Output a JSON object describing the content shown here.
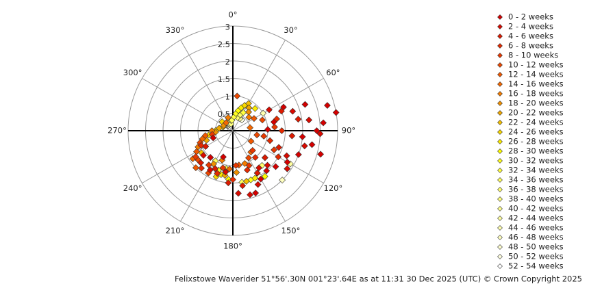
{
  "chart_data": {
    "type": "polar-scatter",
    "footer": "Felixstowe Waverider 51°56'.30N 001°23'.64E as at 11:31 30 Dec 2025 (UTC) © Crown Copyright 2025",
    "rlim": [
      0,
      3
    ],
    "rticks": [
      0.5,
      1,
      1.5,
      2,
      2.5,
      3
    ],
    "thetaticks": [
      {
        "value": 0,
        "label": "0°"
      },
      {
        "value": 30,
        "label": "30°"
      },
      {
        "value": 60,
        "label": "60°"
      },
      {
        "value": 90,
        "label": "90°"
      },
      {
        "value": 120,
        "label": "120°"
      },
      {
        "value": 150,
        "label": "150°"
      },
      {
        "value": 180,
        "label": "180°"
      },
      {
        "value": 210,
        "label": "210°"
      },
      {
        "value": 240,
        "label": "240°"
      },
      {
        "value": 270,
        "label": "270°"
      },
      {
        "value": 300,
        "label": "300°"
      },
      {
        "value": 330,
        "label": "330°"
      }
    ],
    "series": [
      {
        "name": "0 - 2 weeks",
        "color": "#d40000",
        "theta": [
          70,
          75,
          80,
          85,
          90,
          95,
          100,
          105,
          110,
          120,
          130,
          140,
          150,
          160,
          65,
          78,
          88,
          200,
          220,
          250
        ],
        "r": [
          2.2,
          2.8,
          3.0,
          2.6,
          2.4,
          2.0,
          2.3,
          2.6,
          2.0,
          1.8,
          1.6,
          1.5,
          1.6,
          1.9,
          1.6,
          1.2,
          1.0,
          0.8,
          1.0,
          0.6
        ]
      },
      {
        "name": "2 - 4 weeks",
        "color": "#d80a00",
        "theta": [
          72,
          82,
          92,
          102,
          115,
          125,
          135,
          145,
          155,
          165,
          175,
          190,
          210,
          230,
          60
        ],
        "r": [
          1.8,
          2.2,
          2.5,
          2.1,
          1.7,
          1.9,
          1.4,
          1.3,
          1.7,
          1.9,
          1.8,
          1.2,
          1.3,
          1.1,
          1.2
        ]
      },
      {
        "name": "4 - 6 weeks",
        "color": "#dc1a00",
        "theta": [
          68,
          80,
          95,
          110,
          130,
          150,
          170,
          185,
          205,
          225,
          240
        ],
        "r": [
          1.5,
          1.9,
          1.7,
          1.4,
          1.2,
          1.4,
          1.6,
          1.5,
          1.2,
          1.3,
          0.9
        ]
      },
      {
        "name": "6 - 8 weeks",
        "color": "#e42a00",
        "theta": [
          75,
          90,
          105,
          120,
          140,
          160,
          180,
          200,
          220,
          245
        ],
        "r": [
          1.3,
          1.4,
          1.1,
          1.5,
          1.0,
          1.2,
          1.4,
          1.3,
          1.4,
          1.0
        ]
      },
      {
        "name": "8 - 10 weeks",
        "color": "#e83800",
        "theta": [
          85,
          100,
          115,
          135,
          155,
          175,
          195,
          215,
          235,
          260
        ],
        "r": [
          1.2,
          0.9,
          1.3,
          0.8,
          1.1,
          1.0,
          1.1,
          1.2,
          1.3,
          0.6
        ]
      },
      {
        "name": "10 - 12 weeks",
        "color": "#ec4800",
        "theta": [
          7,
          70,
          100,
          150,
          190,
          210,
          230,
          250
        ],
        "r": [
          1.0,
          0.9,
          0.7,
          0.9,
          1.2,
          1.4,
          1.3,
          1.0
        ]
      },
      {
        "name": "12 - 14 weeks",
        "color": "#f05800",
        "theta": [
          60,
          120,
          170,
          200,
          225,
          240,
          260
        ],
        "r": [
          0.7,
          0.6,
          1.0,
          1.3,
          1.5,
          1.2,
          0.8
        ]
      },
      {
        "name": "14 - 16 weeks",
        "color": "#f46800",
        "theta": [
          80,
          140,
          185,
          215,
          235,
          255,
          320
        ],
        "r": [
          0.5,
          0.8,
          1.1,
          1.2,
          1.4,
          0.9,
          0.3
        ]
      },
      {
        "name": "16 - 18 weeks",
        "color": "#f47c00",
        "theta": [
          50,
          160,
          200,
          230,
          245,
          270,
          340
        ],
        "r": [
          0.6,
          1.0,
          0.9,
          1.3,
          1.1,
          0.6,
          0.4
        ]
      },
      {
        "name": "18 - 20 weeks",
        "color": "#f09000",
        "theta": [
          40,
          175,
          210,
          240,
          265,
          300
        ],
        "r": [
          0.7,
          1.2,
          1.1,
          0.9,
          0.5,
          0.3
        ]
      },
      {
        "name": "20 - 22 weeks",
        "color": "#f0a800",
        "theta": [
          35,
          190,
          220,
          250,
          280
        ],
        "r": [
          0.8,
          1.3,
          1.0,
          0.8,
          0.4
        ]
      },
      {
        "name": "22 - 24 weeks",
        "color": "#f4c000",
        "theta": [
          30,
          165,
          205,
          235,
          290
        ],
        "r": [
          0.9,
          1.5,
          1.2,
          1.1,
          0.3
        ]
      },
      {
        "name": "24 - 26 weeks",
        "color": "#f8d800",
        "theta": [
          25,
          150,
          200,
          260,
          310
        ],
        "r": [
          0.8,
          1.4,
          1.4,
          0.7,
          0.4
        ]
      },
      {
        "name": "26 - 28 weeks",
        "color": "#fcec00",
        "theta": [
          20,
          45,
          155,
          195,
          270
        ],
        "r": [
          0.7,
          0.9,
          1.5,
          1.3,
          0.5
        ]
      },
      {
        "name": "28 - 30 weeks",
        "color": "#ffff00",
        "theta": [
          15,
          35,
          145,
          185,
          280
        ],
        "r": [
          0.6,
          0.8,
          1.6,
          1.4,
          0.4
        ]
      },
      {
        "name": "30 - 32 weeks",
        "color": "#ffff20",
        "theta": [
          10,
          40,
          160,
          200,
          300
        ],
        "r": [
          0.5,
          0.7,
          1.5,
          1.2,
          0.3
        ]
      },
      {
        "name": "32 - 34 weeks",
        "color": "#ffff40",
        "theta": [
          5,
          30,
          130,
          190
        ],
        "r": [
          0.4,
          0.6,
          1.2,
          1.1
        ]
      },
      {
        "name": "34 - 36 weeks",
        "color": "#ffff60",
        "theta": [
          355,
          25,
          170,
          210
        ],
        "r": [
          0.3,
          0.5,
          1.5,
          1.0
        ]
      },
      {
        "name": "36 - 38 weeks",
        "color": "#ffff70",
        "theta": [
          350,
          20,
          140
        ],
        "r": [
          0.3,
          0.4,
          1.3
        ]
      },
      {
        "name": "38 - 40 weeks",
        "color": "#ffff80",
        "theta": [
          345,
          15,
          150
        ],
        "r": [
          0.2,
          0.5,
          1.4
        ]
      },
      {
        "name": "40 - 42 weeks",
        "color": "#ffff90",
        "theta": [
          340,
          30
        ],
        "r": [
          0.3,
          0.4
        ]
      },
      {
        "name": "42 - 44 weeks",
        "color": "#ffffa0",
        "theta": [
          335,
          120
        ],
        "r": [
          0.2,
          1.9
        ]
      },
      {
        "name": "44 - 46 weeks",
        "color": "#ffffb0",
        "theta": [
          330,
          60
        ],
        "r": [
          0.2,
          1.0
        ]
      },
      {
        "name": "46 - 48 weeks",
        "color": "#ffffc0",
        "theta": [
          325,
          135
        ],
        "r": [
          0.25,
          2.0
        ]
      },
      {
        "name": "48 - 50 weeks",
        "color": "#ffffd0",
        "theta": [
          320,
          150
        ],
        "r": [
          0.2,
          1.5
        ]
      },
      {
        "name": "50 - 52 weeks",
        "color": "#ffffe0",
        "theta": [
          315,
          40
        ],
        "r": [
          0.2,
          0.4
        ]
      },
      {
        "name": "52 - 54 weeks",
        "color": "#ffffff",
        "theta": [
          310,
          125
        ],
        "r": [
          0.15,
          1.9
        ]
      }
    ]
  }
}
